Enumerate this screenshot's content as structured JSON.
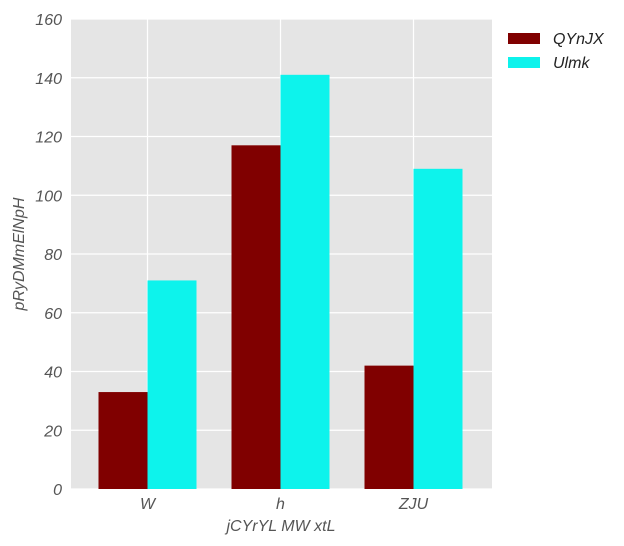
{
  "chart_data": {
    "type": "bar",
    "title": "",
    "xlabel": "jCYrYL MW xtL",
    "ylabel": "pRyDMmElNpH",
    "categories": [
      "W",
      "h",
      "ZJU"
    ],
    "series": [
      {
        "name": "QYnJX",
        "values": [
          33,
          117,
          42
        ],
        "color": "#800000"
      },
      {
        "name": "Ulmk",
        "values": [
          71,
          141,
          109
        ],
        "color": "#0df3ec"
      }
    ],
    "ylim": [
      0,
      160
    ],
    "yticks": [
      0,
      20,
      40,
      60,
      80,
      100,
      120,
      140,
      160
    ],
    "grid": true,
    "legend_position": "top-right-outside",
    "background": "#e5e5e5"
  }
}
